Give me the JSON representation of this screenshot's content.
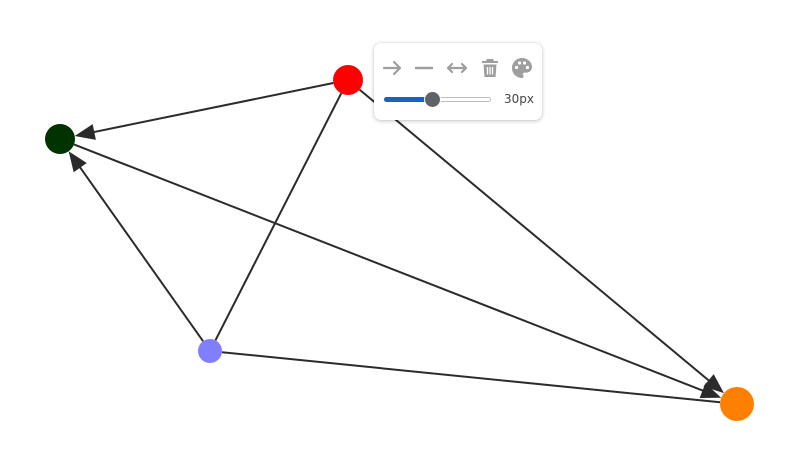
{
  "graph": {
    "edge_color": "#2b2b2b",
    "nodes": [
      {
        "id": "red",
        "color": "#ff0000"
      },
      {
        "id": "dark-green",
        "color": "#003300"
      },
      {
        "id": "lavender",
        "color": "#8080ff"
      },
      {
        "id": "orange",
        "color": "#ff8000"
      }
    ],
    "edges": [
      {
        "from": "red",
        "to": "dark-green",
        "directed": true
      },
      {
        "from": "red",
        "to": "lavender",
        "directed": false
      },
      {
        "from": "red",
        "to": "orange",
        "directed": true
      },
      {
        "from": "lavender",
        "to": "dark-green",
        "directed": true
      },
      {
        "from": "dark-green",
        "to": "orange",
        "directed": true
      },
      {
        "from": "lavender",
        "to": "orange",
        "directed": false
      }
    ]
  },
  "toolbar": {
    "icon_color": "#9e9e9e",
    "buttons": [
      {
        "name": "directed-edge-button",
        "icon": "arrow-right-icon"
      },
      {
        "name": "undirected-edge-button",
        "icon": "line-icon"
      },
      {
        "name": "bidirected-edge-button",
        "icon": "double-arrow-icon"
      },
      {
        "name": "delete-button",
        "icon": "trash-icon"
      },
      {
        "name": "color-button",
        "icon": "palette-icon"
      }
    ],
    "size_slider": {
      "min": 0,
      "max": 100,
      "value": 45,
      "value_label": "30px",
      "fill_color": "#1565c0"
    }
  }
}
